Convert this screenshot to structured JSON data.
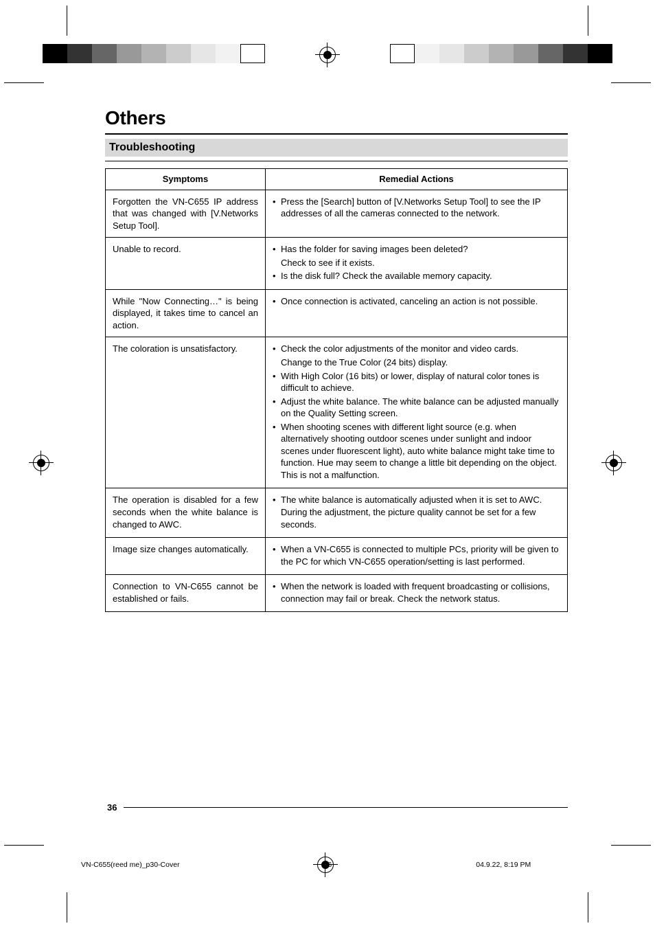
{
  "wedges": {
    "left_colors": [
      "#000000",
      "#333333",
      "#666666",
      "#999999",
      "#b3b3b3",
      "#cccccc",
      "#e6e6e6",
      "#f2f2f2",
      "#ffffff"
    ],
    "right_colors": [
      "#ffffff",
      "#f2f2f2",
      "#e6e6e6",
      "#cccccc",
      "#b3b3b3",
      "#999999",
      "#666666",
      "#333333",
      "#000000"
    ]
  },
  "heading": "Others",
  "subheading": "Troubleshooting",
  "table": {
    "head": {
      "symptoms": "Symptoms",
      "remedial": "Remedial Actions"
    },
    "rows": [
      {
        "sym": "Forgotten the VN-C655 IP address that was changed with [V.Networks Setup Tool].",
        "rem": [
          {
            "t": "li",
            "v": "Press the [Search] button of [V.Networks Setup Tool] to see the IP addresses of all the cameras connected to the network."
          }
        ]
      },
      {
        "sym": "Unable to record.",
        "rem": [
          {
            "t": "li",
            "v": "Has the folder for saving images been deleted?"
          },
          {
            "t": "sub",
            "v": "Check to see if it exists."
          },
          {
            "t": "li",
            "v": "Is the disk full? Check the available memory capacity."
          }
        ]
      },
      {
        "sym": "While \"Now Connecting…\" is being displayed, it takes time to cancel an action.",
        "rem": [
          {
            "t": "li",
            "v": "Once connection is activated, canceling an action is not possible."
          }
        ]
      },
      {
        "sym": "The coloration is unsatisfactory.",
        "rem": [
          {
            "t": "li",
            "v": "Check the color adjustments of the monitor and video cards."
          },
          {
            "t": "sub",
            "v": "Change to the True Color (24 bits) display."
          },
          {
            "t": "li",
            "v": "With High Color (16 bits) or lower, display of natural color tones is difficult to achieve."
          },
          {
            "t": "li",
            "v": "Adjust the white balance. The white balance can be adjusted manually on the Quality Setting screen."
          },
          {
            "t": "li",
            "v": "When shooting scenes with different light source (e.g. when alternatively shooting outdoor scenes under sunlight and indoor scenes under fluorescent light), auto white balance might take time to function. Hue may seem to change a little bit depending on the object. This is not a malfunction."
          }
        ]
      },
      {
        "sym": "The operation is disabled for a few seconds when the white balance is changed to AWC.",
        "rem": [
          {
            "t": "li",
            "v": "The white balance is automatically adjusted when it is set to AWC. During the adjustment, the picture quality cannot be set for a few seconds."
          }
        ]
      },
      {
        "sym": "Image size changes automatically.",
        "rem": [
          {
            "t": "li",
            "v": "When a VN-C655 is connected to multiple PCs, priority will be given to the PC for which VN-C655 operation/setting is last performed."
          }
        ]
      },
      {
        "sym": "Connection to VN-C655 cannot be established or fails.",
        "rem": [
          {
            "t": "li",
            "v": "When the network is loaded with frequent broadcasting or collisions, connection may fail or break. Check the network status."
          }
        ]
      }
    ]
  },
  "page_number": "36",
  "stamp": {
    "file": "VN-C655(reed me)_p30-Cover",
    "page": "36",
    "datetime": "04.9.22, 8:19 PM"
  }
}
